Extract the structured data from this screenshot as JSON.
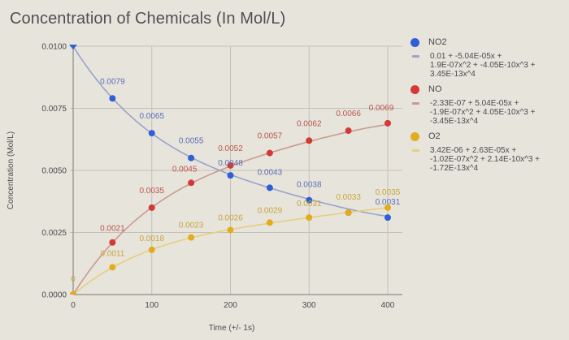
{
  "chart_data": {
    "type": "scatter",
    "title": "Concentration of Chemicals (In Mol/L)",
    "xlabel": "Time (+/- 1s)",
    "ylabel": "Concentration (Mol/L)",
    "xlim": [
      0,
      400
    ],
    "ylim": [
      0,
      0.01
    ],
    "x_ticks": [
      "0",
      "100",
      "200",
      "300",
      "400"
    ],
    "x_tick_values": [
      0,
      100,
      200,
      300,
      400
    ],
    "y_ticks": [
      "0.0000",
      "0.0025",
      "0.0050",
      "0.0075",
      "0.0100"
    ],
    "y_tick_values": [
      0,
      0.0025,
      0.005,
      0.0075,
      0.01
    ],
    "grid": true,
    "legend_position": "right",
    "x": [
      0,
      50,
      100,
      150,
      200,
      250,
      300,
      350,
      400
    ],
    "series": [
      {
        "name": "NO2",
        "color": "#2f5fd6",
        "line_color": "#9aa3c8",
        "label_color": "#5e6fb5",
        "values": [
          0.01,
          0.0079,
          0.0065,
          0.0055,
          0.0048,
          0.0043,
          0.0038,
          0.0033,
          0.0031
        ],
        "labels": [
          "",
          "0.0079",
          "0.0065",
          "0.0055",
          "0.0048",
          "0.0043",
          "0.0038",
          "",
          "0.0031"
        ],
        "trendline": "0.01 + -5.04E-05x +\n1.9E-07x^2 + -4.05E-10x^3 +\n3.45E-13x^4",
        "coef": [
          0.01,
          -5.04e-05,
          1.9e-07,
          -4.05e-10,
          3.45e-13
        ]
      },
      {
        "name": "NO",
        "color": "#d23a35",
        "line_color": "#c99a8e",
        "label_color": "#b8564c",
        "values": [
          0.0,
          0.0021,
          0.0035,
          0.0045,
          0.0052,
          0.0057,
          0.0062,
          0.0066,
          0.0069
        ],
        "labels": [
          "",
          "0.0021",
          "0.0035",
          "0.0045",
          "0.0052",
          "0.0057",
          "0.0062",
          "0.0066",
          "0.0069"
        ],
        "trendline": "-2.33E-07 + 5.04E-05x +\n-1.9E-07x^2 + 4.05E-10x^3 +\n-3.45E-13x^4",
        "coef": [
          -2.33e-07,
          5.04e-05,
          -1.9e-07,
          4.05e-10,
          -3.45e-13
        ]
      },
      {
        "name": "O2",
        "color": "#e2ad1c",
        "line_color": "#e6cf7e",
        "label_color": "#c9a53b",
        "values": [
          0.0,
          0.0011,
          0.0018,
          0.0023,
          0.0026,
          0.0029,
          0.0031,
          0.0033,
          0.0035
        ],
        "labels": [
          "0",
          "0.0011",
          "0.0018",
          "0.0023",
          "0.0026",
          "0.0029",
          "0.0031",
          "0.0033",
          "0.0035"
        ],
        "trendline": "3.42E-06 + 2.63E-05x +\n-1.02E-07x^2 + 2.14E-10x^3 +\n-1.72E-13x^4",
        "coef": [
          3.42e-06,
          2.63e-05,
          -1.02e-07,
          2.14e-10,
          -1.72e-13
        ]
      }
    ]
  }
}
